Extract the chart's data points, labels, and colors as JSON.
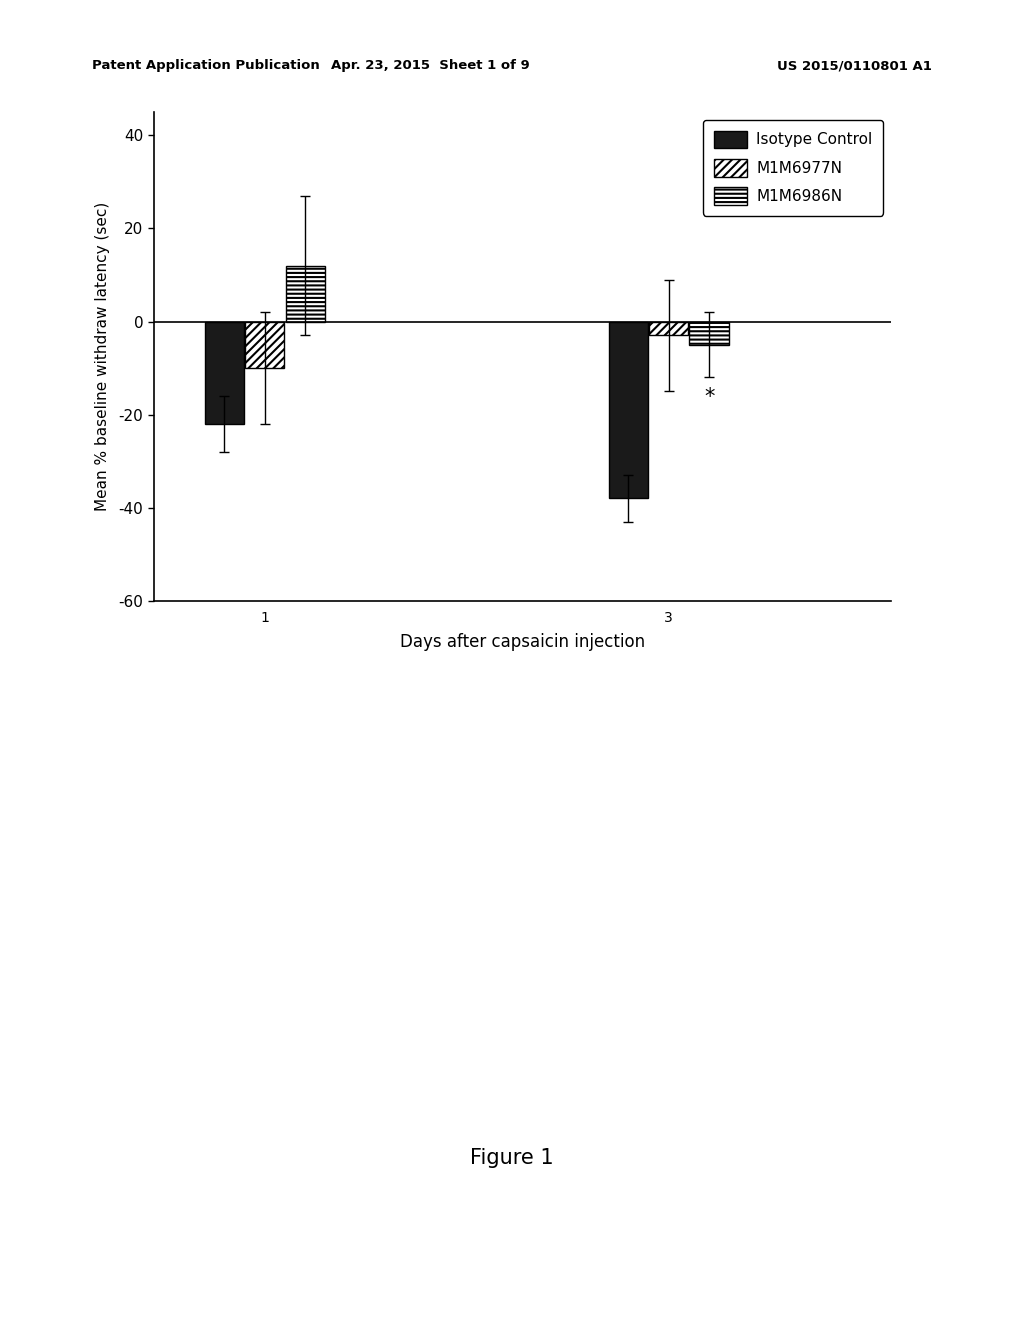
{
  "header_left": "Patent Application Publication",
  "header_center": "Apr. 23, 2015  Sheet 1 of 9",
  "header_right": "US 2015/0110801 A1",
  "figure_label": "Figure 1",
  "xlabel": "Days after capsaicin injection",
  "ylabel": "Mean % baseline withdraw latency (sec)",
  "ylim": [
    -60,
    45
  ],
  "yticks": [
    -60,
    -40,
    -20,
    0,
    20,
    40
  ],
  "xtick_positions": [
    1.0,
    3.0
  ],
  "xtick_labels": [
    "1",
    "3"
  ],
  "groups": [
    {
      "day": 1,
      "bars": [
        {
          "value": -22,
          "error": 6
        },
        {
          "value": -10,
          "error": 12
        },
        {
          "value": 12,
          "error": 15
        }
      ]
    },
    {
      "day": 3,
      "bars": [
        {
          "value": -38,
          "error": 5
        },
        {
          "value": -3,
          "error": 12
        },
        {
          "value": -5,
          "error": 7
        }
      ]
    }
  ],
  "star_day": 3,
  "star_bar_index": 2,
  "star_y": -14,
  "bar_width": 0.2,
  "xlim": [
    0.45,
    4.1
  ],
  "legend_labels": [
    "Isotype Control",
    "M1M6977N",
    "M1M6986N"
  ],
  "legend_hatches": [
    null,
    "////",
    "----"
  ],
  "legend_facecolors": [
    "#1a1a1a",
    "#ffffff",
    "#ffffff"
  ],
  "background_color": "#ffffff"
}
